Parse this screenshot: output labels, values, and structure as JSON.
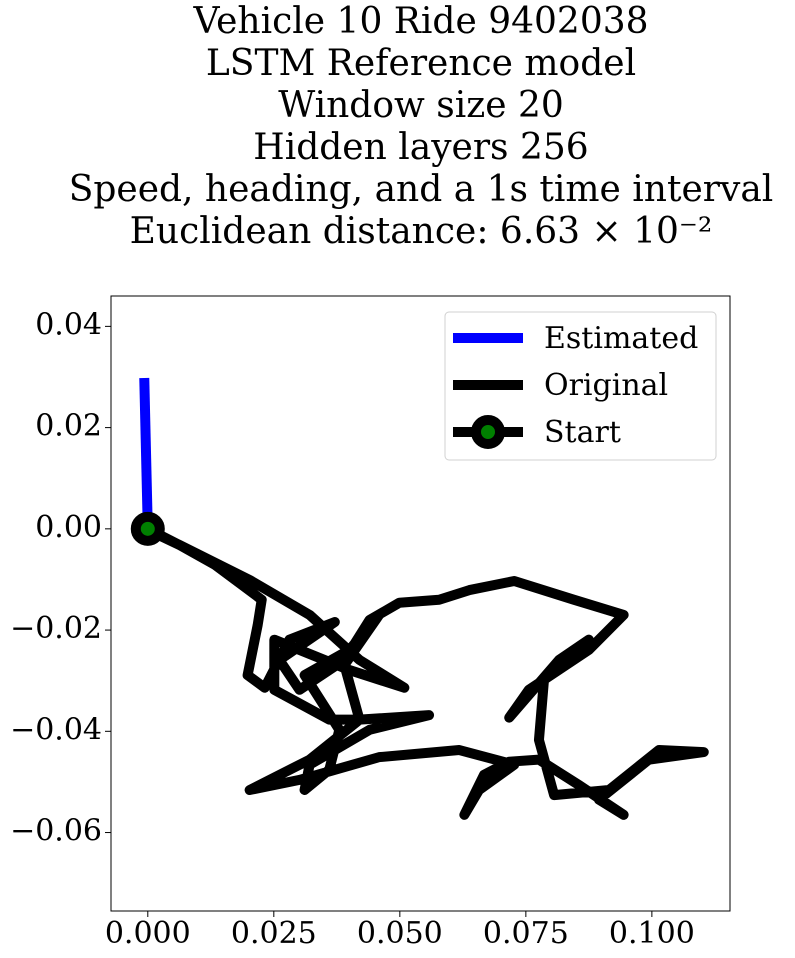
{
  "chart_data": {
    "type": "line",
    "title": [
      "Vehicle 10 Ride 9402038",
      "LSTM Reference model",
      "Window size 20",
      "Hidden layers 256",
      "Speed, heading, and a 1s time interval",
      "Euclidean distance: 6.63 × 10⁻²"
    ],
    "xlim": [
      -0.0073,
      0.1155
    ],
    "ylim": [
      -0.0755,
      0.046
    ],
    "xticks": [
      {
        "value": 0,
        "label": "0.000"
      },
      {
        "value": 0.025,
        "label": "0.025"
      },
      {
        "value": 0.05,
        "label": "0.050"
      },
      {
        "value": 0.075,
        "label": "0.075"
      },
      {
        "value": 0.1,
        "label": "0.100"
      }
    ],
    "yticks": [
      {
        "value": -0.06,
        "label": "−0.06"
      },
      {
        "value": -0.04,
        "label": "−0.04"
      },
      {
        "value": -0.02,
        "label": "−0.02"
      },
      {
        "value": 0,
        "label": "0.00"
      },
      {
        "value": 0.02,
        "label": "0.02"
      },
      0.04
    ],
    "grid": false,
    "legend": "upper right",
    "series": [
      {
        "name": "Estimated",
        "color": "#0000ff",
        "x": [
          -0.0007,
          0.0
        ],
        "y": [
          0.0298,
          0.0
        ]
      },
      {
        "name": "Original",
        "color": "#000000",
        "x": [
          0,
          0.0063,
          0.0133,
          0.0226,
          0.0218,
          0.0198,
          0.0232,
          0.0281,
          0.0371,
          0.0261,
          0.0301,
          0.039,
          0.044,
          0.0499,
          0.0578,
          0.0638,
          0.0727,
          0.0845,
          0.0944,
          0.0875,
          0.0756,
          0.0717,
          0.0816,
          0.0875,
          0.0786,
          0.0776,
          0.0806,
          0.0915,
          0.1014,
          0.1103,
          0.0994,
          0.0895,
          0.0944,
          0.0855,
          0.0776,
          0.0717,
          0.0667,
          0.0628,
          0.0657,
          0.0727,
          0.0618,
          0.0459,
          0.0301,
          0.0202,
          0.0321,
          0.042,
          0.0558,
          0.044,
          0.0321,
          0.0311,
          0.036,
          0.038,
          0.0311,
          0.04,
          0.0459,
          0.039,
          0.042,
          0.036,
          0.0251,
          0.0251,
          0.04,
          0.0509,
          0.042,
          0.0321,
          0.0202,
          0.0063,
          0.0008
        ],
        "y": [
          0,
          -0.0032,
          -0.0071,
          -0.014,
          -0.019,
          -0.0289,
          -0.0314,
          -0.0219,
          -0.0184,
          -0.0259,
          -0.0318,
          -0.0259,
          -0.018,
          -0.0146,
          -0.014,
          -0.0121,
          -0.0103,
          -0.014,
          -0.017,
          -0.0239,
          -0.0318,
          -0.0373,
          -0.0259,
          -0.0219,
          -0.0298,
          -0.0417,
          -0.0526,
          -0.0516,
          -0.0437,
          -0.0441,
          -0.0456,
          -0.0535,
          -0.0565,
          -0.0506,
          -0.0456,
          -0.046,
          -0.0486,
          -0.0565,
          -0.0516,
          -0.0466,
          -0.0437,
          -0.0451,
          -0.0496,
          -0.0516,
          -0.0456,
          -0.0377,
          -0.0368,
          -0.0397,
          -0.0466,
          -0.0516,
          -0.0476,
          -0.0397,
          -0.0289,
          -0.0239,
          -0.017,
          -0.0269,
          -0.0377,
          -0.0377,
          -0.0318,
          -0.0219,
          -0.0279,
          -0.0314,
          -0.0259,
          -0.017,
          -0.0101,
          -0.0032,
          -0.0006
        ]
      },
      {
        "name": "Start",
        "color": "#000000",
        "marker_color": "#008000",
        "x": [
          0
        ],
        "y": [
          0
        ]
      }
    ]
  }
}
